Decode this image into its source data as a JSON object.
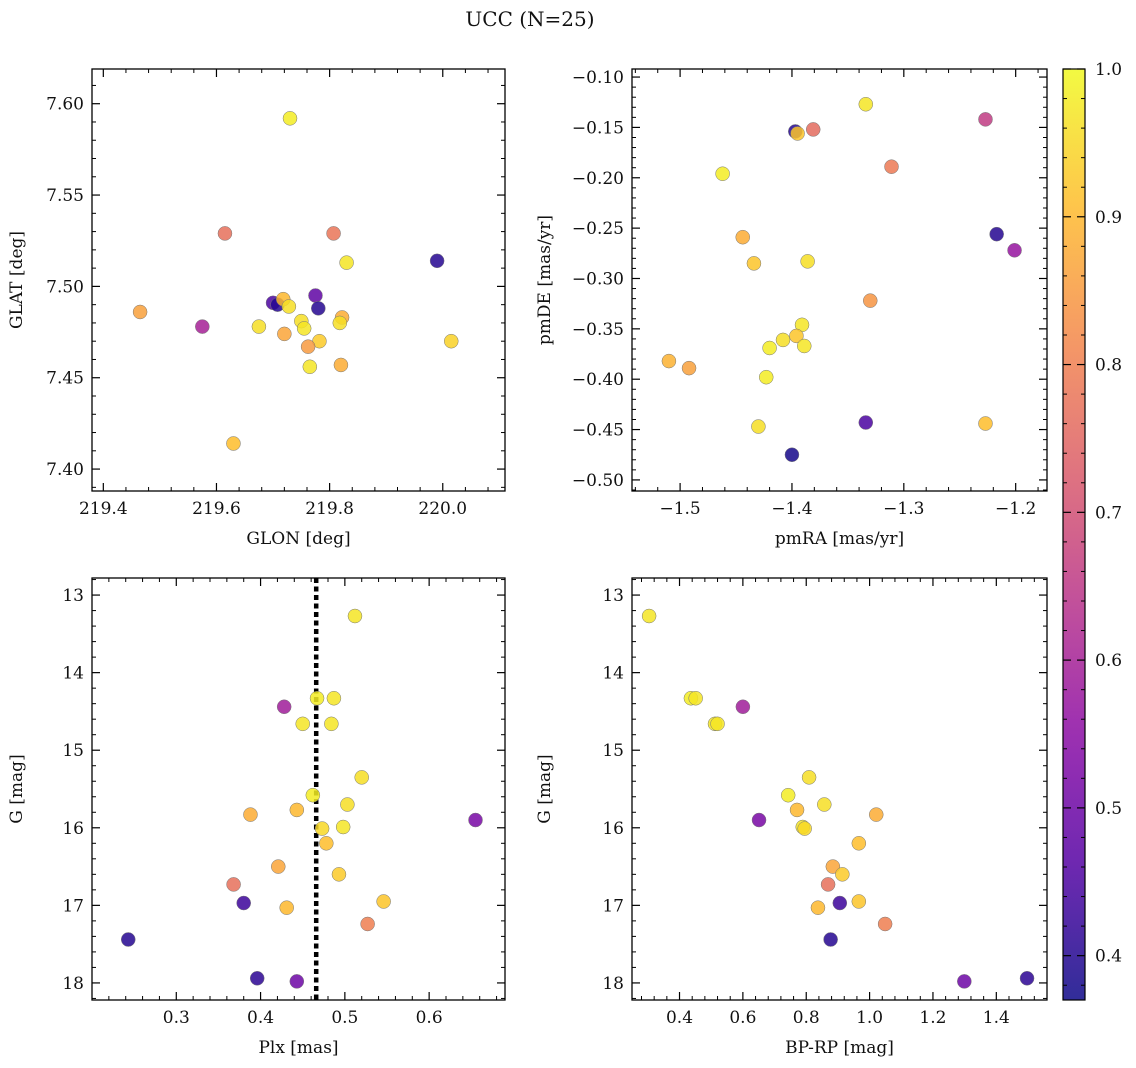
{
  "title": "UCC (N=25)",
  "colorbar": {
    "colormap": "plasma",
    "range": [
      0.37,
      1.0
    ],
    "ticks": [
      0.4,
      0.5,
      0.6,
      0.7,
      0.8,
      0.9,
      1.0
    ],
    "tick_labels": [
      "0.4",
      "0.5",
      "0.6",
      "0.7",
      "0.8",
      "0.9",
      "1.0"
    ],
    "colors": [
      "#0d0887",
      "#5302a3",
      "#8b0aa5",
      "#b83289",
      "#db5c68",
      "#f48849",
      "#febd2a",
      "#f0f921"
    ]
  },
  "chart_data": [
    {
      "type": "scatter",
      "xlabel": "GLON [deg]",
      "ylabel": "GLAT [deg]",
      "xlim": [
        219.38,
        220.11
      ],
      "ylim": [
        7.388,
        7.619
      ],
      "inverted_y": false,
      "xticks": [
        219.4,
        219.6,
        219.8,
        220.0
      ],
      "xtick_labels": [
        "219.4",
        "219.6",
        "219.8",
        "220.0"
      ],
      "yticks": [
        7.4,
        7.45,
        7.5,
        7.55,
        7.6
      ],
      "ytick_labels": [
        "7.40",
        "7.45",
        "7.50",
        "7.55",
        "7.60"
      ],
      "points": [
        {
          "x": 219.73,
          "y": 7.592,
          "c": 0.98
        },
        {
          "x": 219.615,
          "y": 7.529,
          "c": 0.77
        },
        {
          "x": 219.807,
          "y": 7.529,
          "c": 0.78
        },
        {
          "x": 219.83,
          "y": 7.513,
          "c": 0.97
        },
        {
          "x": 219.99,
          "y": 7.514,
          "c": 0.4
        },
        {
          "x": 219.465,
          "y": 7.486,
          "c": 0.86
        },
        {
          "x": 219.575,
          "y": 7.478,
          "c": 0.6
        },
        {
          "x": 219.7,
          "y": 7.491,
          "c": 0.45
        },
        {
          "x": 219.708,
          "y": 7.49,
          "c": 0.4
        },
        {
          "x": 219.718,
          "y": 7.493,
          "c": 0.9
        },
        {
          "x": 219.728,
          "y": 7.489,
          "c": 0.96
        },
        {
          "x": 219.775,
          "y": 7.495,
          "c": 0.48
        },
        {
          "x": 219.78,
          "y": 7.488,
          "c": 0.4
        },
        {
          "x": 219.675,
          "y": 7.478,
          "c": 0.96
        },
        {
          "x": 219.72,
          "y": 7.474,
          "c": 0.87
        },
        {
          "x": 219.75,
          "y": 7.481,
          "c": 0.96
        },
        {
          "x": 219.755,
          "y": 7.477,
          "c": 0.97
        },
        {
          "x": 219.822,
          "y": 7.483,
          "c": 0.88
        },
        {
          "x": 219.818,
          "y": 7.48,
          "c": 0.96
        },
        {
          "x": 219.782,
          "y": 7.47,
          "c": 0.93
        },
        {
          "x": 219.762,
          "y": 7.467,
          "c": 0.85
        },
        {
          "x": 219.765,
          "y": 7.456,
          "c": 0.97
        },
        {
          "x": 219.82,
          "y": 7.457,
          "c": 0.88
        },
        {
          "x": 220.015,
          "y": 7.47,
          "c": 0.94
        },
        {
          "x": 219.63,
          "y": 7.414,
          "c": 0.91
        }
      ]
    },
    {
      "type": "scatter",
      "xlabel": "pmRA [mas/yr]",
      "ylabel": "pmDE [mas/yr]",
      "xlim": [
        -1.543,
        -1.172
      ],
      "ylim": [
        -0.511,
        -0.092
      ],
      "inverted_y": false,
      "xticks": [
        -1.5,
        -1.4,
        -1.3,
        -1.2
      ],
      "xtick_labels": [
        "−1.5",
        "−1.4",
        "−1.3",
        "−1.2"
      ],
      "yticks": [
        -0.5,
        -0.45,
        -0.4,
        -0.35,
        -0.3,
        -0.25,
        -0.2,
        -0.15,
        -0.1
      ],
      "ytick_labels": [
        "−0.50",
        "−0.45",
        "−0.40",
        "−0.35",
        "−0.30",
        "−0.25",
        "−0.20",
        "−0.15",
        "−0.10"
      ],
      "points": [
        {
          "x": -1.334,
          "y": -0.127,
          "c": 0.97
        },
        {
          "x": -1.227,
          "y": -0.142,
          "c": 0.66
        },
        {
          "x": -1.397,
          "y": -0.154,
          "c": 0.4
        },
        {
          "x": -1.395,
          "y": -0.156,
          "c": 0.92
        },
        {
          "x": -1.381,
          "y": -0.152,
          "c": 0.76
        },
        {
          "x": -1.462,
          "y": -0.196,
          "c": 0.98
        },
        {
          "x": -1.311,
          "y": -0.189,
          "c": 0.79
        },
        {
          "x": -1.444,
          "y": -0.259,
          "c": 0.88
        },
        {
          "x": -1.217,
          "y": -0.256,
          "c": 0.4
        },
        {
          "x": -1.201,
          "y": -0.272,
          "c": 0.57
        },
        {
          "x": -1.434,
          "y": -0.285,
          "c": 0.92
        },
        {
          "x": -1.386,
          "y": -0.283,
          "c": 0.96
        },
        {
          "x": -1.33,
          "y": -0.322,
          "c": 0.84
        },
        {
          "x": -1.391,
          "y": -0.346,
          "c": 0.97
        },
        {
          "x": -1.396,
          "y": -0.357,
          "c": 0.92
        },
        {
          "x": -1.408,
          "y": -0.361,
          "c": 0.96
        },
        {
          "x": -1.42,
          "y": -0.369,
          "c": 0.98
        },
        {
          "x": -1.389,
          "y": -0.367,
          "c": 0.97
        },
        {
          "x": -1.51,
          "y": -0.382,
          "c": 0.89
        },
        {
          "x": -1.492,
          "y": -0.389,
          "c": 0.86
        },
        {
          "x": -1.423,
          "y": -0.398,
          "c": 0.98
        },
        {
          "x": -1.334,
          "y": -0.443,
          "c": 0.45
        },
        {
          "x": -1.43,
          "y": -0.447,
          "c": 0.96
        },
        {
          "x": -1.227,
          "y": -0.444,
          "c": 0.91
        },
        {
          "x": -1.4,
          "y": -0.475,
          "c": 0.38
        }
      ]
    },
    {
      "type": "scatter",
      "xlabel": "Plx [mas]",
      "ylabel": "G [mag]",
      "xlim": [
        0.2,
        0.69
      ],
      "ylim": [
        18.22,
        12.78
      ],
      "inverted_y": true,
      "vline": {
        "x": 0.466,
        "style": "dotted",
        "color": "#000000"
      },
      "xticks": [
        0.3,
        0.4,
        0.5,
        0.6
      ],
      "xtick_labels": [
        "0.3",
        "0.4",
        "0.5",
        "0.6"
      ],
      "yticks": [
        13,
        14,
        15,
        16,
        17,
        18
      ],
      "ytick_labels": [
        "13",
        "14",
        "15",
        "16",
        "17",
        "18"
      ],
      "points": [
        {
          "x": 0.512,
          "y": 13.27,
          "c": 0.97
        },
        {
          "x": 0.467,
          "y": 14.33,
          "c": 0.98
        },
        {
          "x": 0.487,
          "y": 14.33,
          "c": 0.97
        },
        {
          "x": 0.428,
          "y": 14.44,
          "c": 0.59
        },
        {
          "x": 0.45,
          "y": 14.66,
          "c": 0.97
        },
        {
          "x": 0.484,
          "y": 14.66,
          "c": 0.97
        },
        {
          "x": 0.52,
          "y": 15.35,
          "c": 0.96
        },
        {
          "x": 0.462,
          "y": 15.58,
          "c": 0.98
        },
        {
          "x": 0.503,
          "y": 15.7,
          "c": 0.96
        },
        {
          "x": 0.443,
          "y": 15.77,
          "c": 0.9
        },
        {
          "x": 0.388,
          "y": 15.83,
          "c": 0.88
        },
        {
          "x": 0.655,
          "y": 15.9,
          "c": 0.52
        },
        {
          "x": 0.498,
          "y": 15.99,
          "c": 0.97
        },
        {
          "x": 0.473,
          "y": 16.01,
          "c": 0.95
        },
        {
          "x": 0.478,
          "y": 16.2,
          "c": 0.91
        },
        {
          "x": 0.421,
          "y": 16.5,
          "c": 0.87
        },
        {
          "x": 0.493,
          "y": 16.6,
          "c": 0.93
        },
        {
          "x": 0.368,
          "y": 16.73,
          "c": 0.77
        },
        {
          "x": 0.546,
          "y": 16.95,
          "c": 0.92
        },
        {
          "x": 0.38,
          "y": 16.97,
          "c": 0.43
        },
        {
          "x": 0.431,
          "y": 17.03,
          "c": 0.9
        },
        {
          "x": 0.527,
          "y": 17.24,
          "c": 0.8
        },
        {
          "x": 0.243,
          "y": 17.44,
          "c": 0.4
        },
        {
          "x": 0.396,
          "y": 17.94,
          "c": 0.41
        },
        {
          "x": 0.443,
          "y": 17.98,
          "c": 0.5
        }
      ]
    },
    {
      "type": "scatter",
      "xlabel": "BP-RP [mag]",
      "ylabel": "G [mag]",
      "xlim": [
        0.25,
        1.56
      ],
      "ylim": [
        18.22,
        12.78
      ],
      "inverted_y": true,
      "xticks": [
        0.4,
        0.6,
        0.8,
        1.0,
        1.2,
        1.4
      ],
      "xtick_labels": [
        "0.4",
        "0.6",
        "0.8",
        "1.0",
        "1.2",
        "1.4"
      ],
      "yticks": [
        13,
        14,
        15,
        16,
        17,
        18
      ],
      "ytick_labels": [
        "13",
        "14",
        "15",
        "16",
        "17",
        "18"
      ],
      "points": [
        {
          "x": 0.304,
          "y": 13.27,
          "c": 0.97
        },
        {
          "x": 0.436,
          "y": 14.33,
          "c": 0.98
        },
        {
          "x": 0.451,
          "y": 14.33,
          "c": 0.97
        },
        {
          "x": 0.6,
          "y": 14.44,
          "c": 0.59
        },
        {
          "x": 0.512,
          "y": 14.66,
          "c": 0.97
        },
        {
          "x": 0.52,
          "y": 14.66,
          "c": 0.97
        },
        {
          "x": 0.809,
          "y": 15.35,
          "c": 0.96
        },
        {
          "x": 0.743,
          "y": 15.58,
          "c": 0.98
        },
        {
          "x": 0.857,
          "y": 15.7,
          "c": 0.96
        },
        {
          "x": 0.771,
          "y": 15.77,
          "c": 0.9
        },
        {
          "x": 1.021,
          "y": 15.83,
          "c": 0.88
        },
        {
          "x": 0.651,
          "y": 15.9,
          "c": 0.52
        },
        {
          "x": 0.789,
          "y": 15.99,
          "c": 0.97
        },
        {
          "x": 0.795,
          "y": 16.01,
          "c": 0.95
        },
        {
          "x": 0.966,
          "y": 16.2,
          "c": 0.91
        },
        {
          "x": 0.884,
          "y": 16.5,
          "c": 0.87
        },
        {
          "x": 0.914,
          "y": 16.6,
          "c": 0.93
        },
        {
          "x": 0.869,
          "y": 16.73,
          "c": 0.77
        },
        {
          "x": 0.966,
          "y": 16.95,
          "c": 0.92
        },
        {
          "x": 0.906,
          "y": 16.97,
          "c": 0.43
        },
        {
          "x": 0.837,
          "y": 17.03,
          "c": 0.9
        },
        {
          "x": 1.049,
          "y": 17.24,
          "c": 0.8
        },
        {
          "x": 0.877,
          "y": 17.44,
          "c": 0.4
        },
        {
          "x": 1.497,
          "y": 17.94,
          "c": 0.41
        },
        {
          "x": 1.299,
          "y": 17.98,
          "c": 0.5
        }
      ]
    }
  ]
}
